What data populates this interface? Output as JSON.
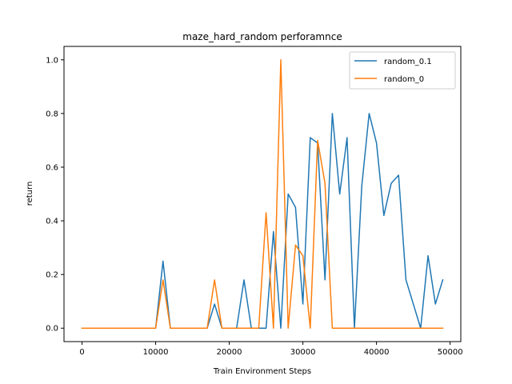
{
  "chart_data": {
    "type": "line",
    "title": "maze_hard_random perforamnce",
    "xlabel": "Train Environment Steps",
    "ylabel": "return",
    "xlim": [
      -2450,
      51450
    ],
    "ylim": [
      -0.05,
      1.05
    ],
    "xticks": [
      0,
      10000,
      20000,
      30000,
      40000,
      50000
    ],
    "xtick_labels": [
      "0",
      "10000",
      "20000",
      "30000",
      "40000",
      "50000"
    ],
    "yticks": [
      0.0,
      0.2,
      0.4,
      0.6,
      0.8,
      1.0
    ],
    "ytick_labels": [
      "0.0",
      "0.2",
      "0.4",
      "0.6",
      "0.8",
      "1.0"
    ],
    "grid": false,
    "legend_position": "top-right",
    "x": [
      0,
      1000,
      2000,
      3000,
      4000,
      5000,
      6000,
      7000,
      8000,
      9000,
      10000,
      11000,
      12000,
      13000,
      14000,
      15000,
      16000,
      17000,
      18000,
      19000,
      20000,
      21000,
      22000,
      23000,
      24000,
      25000,
      26000,
      27000,
      28000,
      29000,
      30000,
      31000,
      32000,
      33000,
      34000,
      35000,
      36000,
      37000,
      38000,
      39000,
      40000,
      41000,
      42000,
      43000,
      44000,
      45000,
      46000,
      47000,
      48000,
      49000
    ],
    "series": [
      {
        "name": "random_0.1",
        "color": "#1f77b4",
        "values": [
          0,
          0,
          0,
          0,
          0,
          0,
          0,
          0,
          0,
          0,
          0,
          0.25,
          0,
          0,
          0,
          0,
          0,
          0,
          0.09,
          0,
          0,
          0,
          0.18,
          0,
          0,
          0,
          0.36,
          0,
          0.5,
          0.45,
          0.09,
          0.71,
          0.69,
          0.18,
          0.8,
          0.5,
          0.71,
          0,
          0.53,
          0.8,
          0.69,
          0.42,
          0.54,
          0.57,
          0.18,
          0.09,
          0,
          0.27,
          0.09,
          0.18
        ]
      },
      {
        "name": "random_0",
        "color": "#ff7f0e",
        "values": [
          0,
          0,
          0,
          0,
          0,
          0,
          0,
          0,
          0,
          0,
          0,
          0.18,
          0,
          0,
          0,
          0,
          0,
          0,
          0.18,
          0,
          0,
          0,
          0,
          0,
          0,
          0.43,
          0,
          1.0,
          0,
          0.31,
          0.27,
          0,
          0.7,
          0.54,
          0,
          0,
          0,
          0,
          0,
          0,
          0,
          0,
          0,
          0,
          0,
          0,
          0,
          0,
          0,
          0
        ]
      }
    ]
  }
}
